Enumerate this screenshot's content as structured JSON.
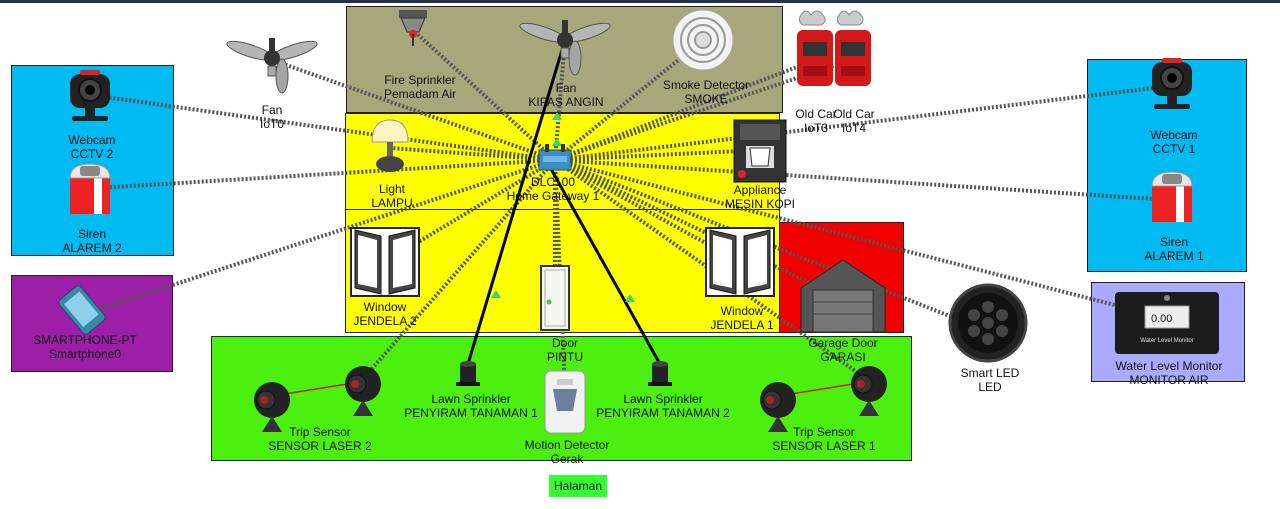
{
  "colors": {
    "attic": "#a8a77c",
    "house": "#ffff00",
    "yard": "#4cf00f",
    "side_panel": "#00baf2",
    "phone_panel": "#9d1fa8",
    "garage": "#f20000",
    "monitor_panel": "#aaaaff",
    "wireless_link": "#555555",
    "cable": "#000000",
    "tag": "#33ff33"
  },
  "devices": {
    "fan_iot0": {
      "type": "Fan",
      "name": "IoT0",
      "icon": "ceiling-fan-icon"
    },
    "fire_sprinkler": {
      "type": "Fire Sprinkler",
      "name": "Pemadam Air",
      "icon": "fire-sprinkler-icon"
    },
    "fan_kipas": {
      "type": "Fan",
      "name": "KIPAS ANGIN",
      "icon": "ceiling-fan-icon"
    },
    "smoke_detector": {
      "type": "Smoke Detector",
      "name": "SMOKE",
      "icon": "smoke-detector-icon"
    },
    "old_car_iot3": {
      "type": "Old Car",
      "name": "IoT3",
      "icon": "old-car-icon"
    },
    "old_car_iot4": {
      "type": "Old Car",
      "name": "IoT4",
      "icon": "old-car-icon"
    },
    "webcam_cctv2": {
      "type": "Webcam",
      "name": "CCTV 2",
      "icon": "webcam-icon"
    },
    "siren_alarem2": {
      "type": "Siren",
      "name": "ALAREM 2",
      "icon": "siren-icon"
    },
    "webcam_cctv1": {
      "type": "Webcam",
      "name": "CCTV 1",
      "icon": "webcam-icon"
    },
    "siren_alarem1": {
      "type": "Siren",
      "name": "ALAREM 1",
      "icon": "siren-icon"
    },
    "light_lampu": {
      "type": "Light",
      "name": "LAMPU",
      "icon": "table-lamp-icon"
    },
    "gateway": {
      "type": "DLC100",
      "name": "Home Gateway 1",
      "icon": "home-gateway-icon"
    },
    "appliance": {
      "type": "Appliance",
      "name": "MESIN KOPI",
      "icon": "coffee-machine-icon"
    },
    "window_jendela2": {
      "type": "Window",
      "name": "JENDELA 2",
      "icon": "window-icon"
    },
    "door_pintu": {
      "type": "Door",
      "name": "PINTU",
      "icon": "door-icon"
    },
    "window_jendela1": {
      "type": "Window",
      "name": "JENDELA 1",
      "icon": "window-icon"
    },
    "garage_door": {
      "type": "Garage Door",
      "name": "GARASI",
      "icon": "garage-door-icon"
    },
    "smart_led": {
      "type": "Smart LED",
      "name": "LED",
      "icon": "smart-led-icon"
    },
    "water_monitor": {
      "type": "Water Level Monitor",
      "name": "MONITOR AIR",
      "icon": "water-level-monitor-icon",
      "screen_value": "0.00",
      "screen_caption": "Water Level Monitor"
    },
    "smartphone": {
      "type": "SMARTPHONE-PT",
      "name": "Smartphone0",
      "icon": "smartphone-icon"
    },
    "lawn_sprinkler1": {
      "type": "Lawn Sprinkler",
      "name": "PENYIRAM TANAMAN 1",
      "icon": "lawn-sprinkler-icon"
    },
    "lawn_sprinkler2": {
      "type": "Lawn Sprinkler",
      "name": "PENYIRAM TANAMAN 2",
      "icon": "lawn-sprinkler-icon"
    },
    "motion_detector": {
      "type": "Motion Detector",
      "name": "Gerak",
      "icon": "motion-detector-icon"
    },
    "trip_sensor2": {
      "type": "Trip Sensor",
      "name": "SENSOR LASER 2",
      "icon": "trip-sensor-icon"
    },
    "trip_sensor1": {
      "type": "Trip Sensor",
      "name": "SENSOR LASER 1",
      "icon": "trip-sensor-icon"
    }
  },
  "area_tag": "Halaman"
}
